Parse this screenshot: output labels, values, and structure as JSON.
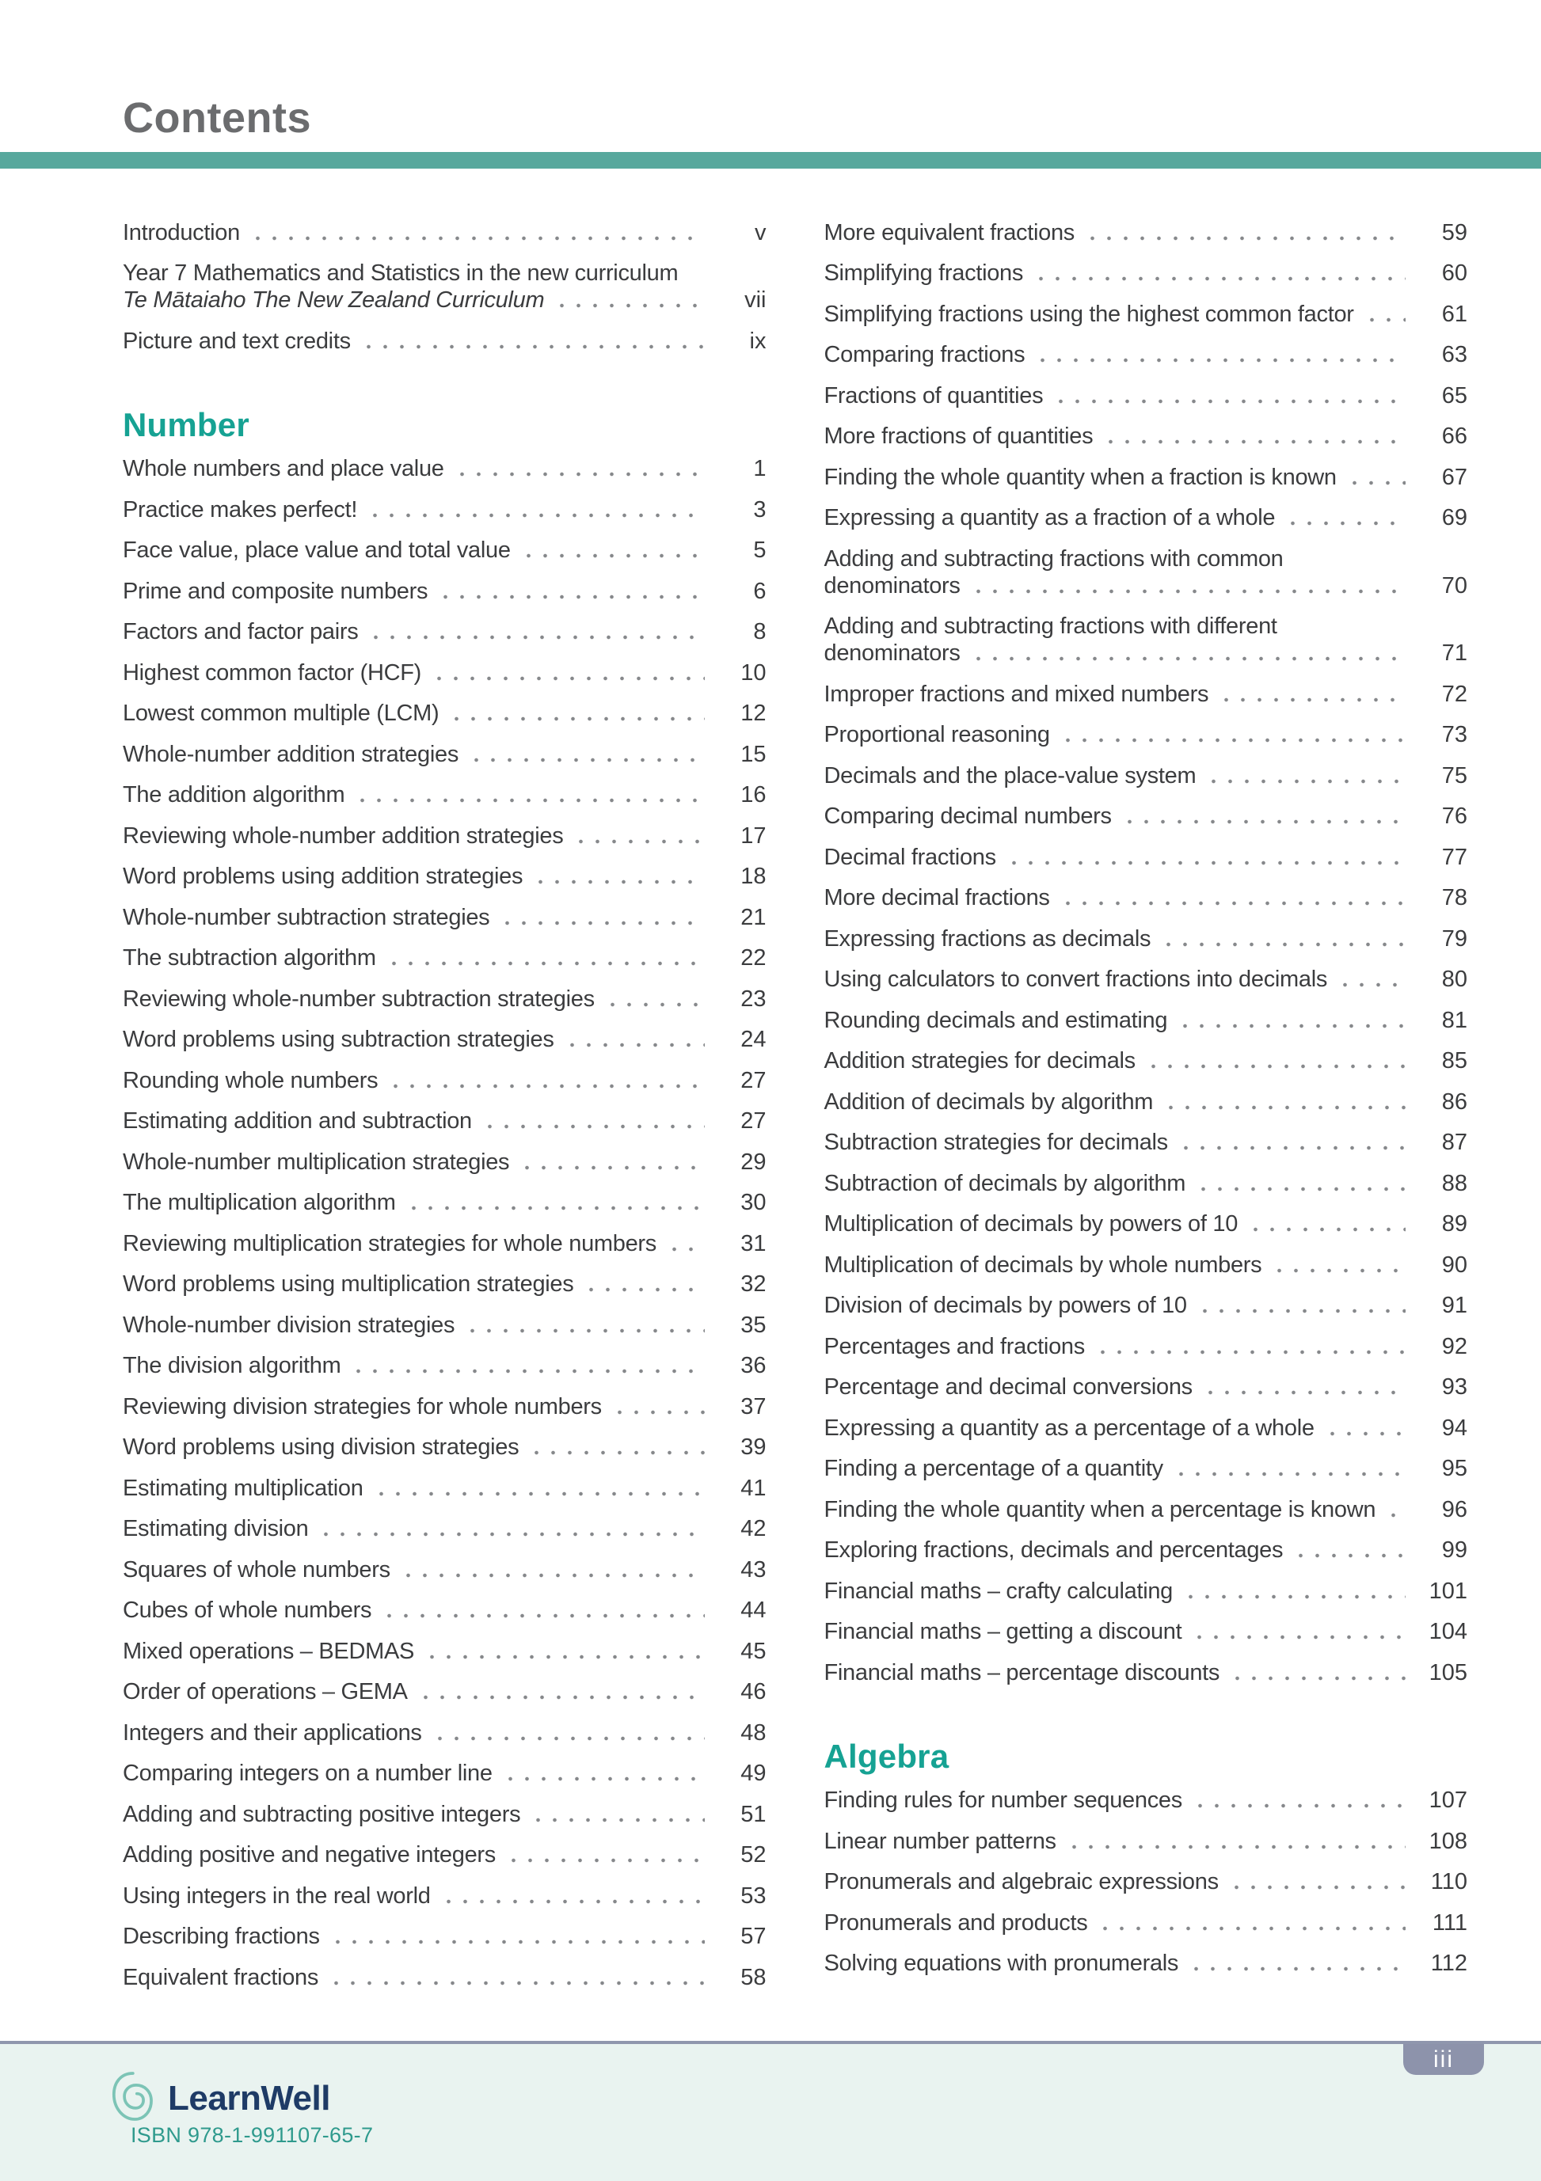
{
  "page": {
    "title": "Contents",
    "page_badge": "iii"
  },
  "footer": {
    "brand_name": "LearnWell",
    "isbn": "ISBN 978-1-991107-65-7"
  },
  "accent_colors": {
    "title_bar_teal": "#58a89d",
    "heading_teal": "#16a293",
    "footer_background": "#e9f3f0",
    "badge_gray_blue": "#8d93ab",
    "brand_navy": "#1e3b66",
    "isbn_teal": "#2f9a8d"
  },
  "toc": {
    "columns": [
      {
        "blocks": [
          {
            "type": "entries",
            "items": [
              {
                "label": "Introduction",
                "page": "v"
              },
              {
                "label": "Year 7 Mathematics and Statistics in the new curriculum",
                "label2": "Te Mātaiaho The New Zealand Curriculum",
                "label2_italic": true,
                "page": "vii"
              },
              {
                "label": "Picture and text credits",
                "page": "ix"
              }
            ]
          },
          {
            "type": "heading",
            "text": "Number"
          },
          {
            "type": "entries",
            "items": [
              {
                "label": "Whole numbers and place value",
                "page": "1"
              },
              {
                "label": "Practice makes perfect!",
                "page": "3"
              },
              {
                "label": "Face value, place value and total value",
                "page": "5"
              },
              {
                "label": "Prime and composite numbers",
                "page": "6"
              },
              {
                "label": "Factors and factor pairs",
                "page": "8"
              },
              {
                "label": "Highest common factor (HCF)",
                "page": "10"
              },
              {
                "label": "Lowest common multiple (LCM)",
                "page": "12"
              },
              {
                "label": "Whole-number addition strategies",
                "page": "15"
              },
              {
                "label": "The addition algorithm",
                "page": "16"
              },
              {
                "label": "Reviewing whole-number addition strategies",
                "page": "17"
              },
              {
                "label": "Word problems using addition strategies",
                "page": "18"
              },
              {
                "label": "Whole-number subtraction strategies",
                "page": "21"
              },
              {
                "label": "The subtraction algorithm",
                "page": "22"
              },
              {
                "label": "Reviewing whole-number subtraction strategies",
                "page": "23"
              },
              {
                "label": "Word problems using subtraction strategies",
                "page": "24"
              },
              {
                "label": "Rounding whole numbers",
                "page": "27"
              },
              {
                "label": "Estimating addition and subtraction",
                "page": "27"
              },
              {
                "label": "Whole-number multiplication strategies",
                "page": "29"
              },
              {
                "label": "The multiplication algorithm",
                "page": "30"
              },
              {
                "label": "Reviewing multiplication strategies for whole numbers",
                "page": "31"
              },
              {
                "label": "Word problems using multiplication strategies",
                "page": "32"
              },
              {
                "label": "Whole-number division strategies",
                "page": "35"
              },
              {
                "label": "The division algorithm",
                "page": "36"
              },
              {
                "label": "Reviewing division strategies for whole numbers",
                "page": "37"
              },
              {
                "label": "Word problems using division strategies",
                "page": "39"
              },
              {
                "label": "Estimating multiplication",
                "page": "41"
              },
              {
                "label": "Estimating division",
                "page": "42"
              },
              {
                "label": "Squares of whole numbers",
                "page": "43"
              },
              {
                "label": "Cubes of whole numbers",
                "page": "44"
              },
              {
                "label": "Mixed operations – BEDMAS",
                "page": "45"
              },
              {
                "label": "Order of operations – GEMA",
                "page": "46"
              },
              {
                "label": "Integers and their applications",
                "page": "48"
              },
              {
                "label": "Comparing integers on a number line",
                "page": "49"
              },
              {
                "label": "Adding and subtracting positive integers",
                "page": "51"
              },
              {
                "label": "Adding positive and negative integers",
                "page": "52"
              },
              {
                "label": "Using integers in the real world",
                "page": "53"
              },
              {
                "label": "Describing fractions",
                "page": "57"
              },
              {
                "label": "Equivalent fractions",
                "page": "58"
              }
            ]
          }
        ]
      },
      {
        "blocks": [
          {
            "type": "entries",
            "items": [
              {
                "label": "More equivalent fractions",
                "page": "59"
              },
              {
                "label": "Simplifying fractions",
                "page": "60"
              },
              {
                "label": "Simplifying fractions using the highest common factor",
                "page": "61"
              },
              {
                "label": "Comparing fractions",
                "page": "63"
              },
              {
                "label": "Fractions of quantities",
                "page": "65"
              },
              {
                "label": "More fractions of quantities",
                "page": "66"
              },
              {
                "label": "Finding the whole quantity when a fraction is known",
                "page": "67"
              },
              {
                "label": "Expressing a quantity as a fraction of a whole",
                "page": "69"
              },
              {
                "label": "Adding and subtracting fractions with common",
                "label2": "denominators",
                "label2_italic": false,
                "page": "70"
              },
              {
                "label": "Adding and subtracting fractions with different",
                "label2": "denominators",
                "label2_italic": false,
                "page": "71"
              },
              {
                "label": "Improper fractions and mixed numbers",
                "page": "72"
              },
              {
                "label": "Proportional reasoning",
                "page": "73"
              },
              {
                "label": "Decimals and the place-value system",
                "page": "75"
              },
              {
                "label": "Comparing decimal numbers",
                "page": "76"
              },
              {
                "label": "Decimal fractions",
                "page": "77"
              },
              {
                "label": "More decimal fractions",
                "page": "78"
              },
              {
                "label": "Expressing fractions as decimals",
                "page": "79"
              },
              {
                "label": "Using calculators to convert fractions into decimals",
                "page": "80"
              },
              {
                "label": "Rounding decimals and estimating",
                "page": "81"
              },
              {
                "label": "Addition strategies for decimals",
                "page": "85"
              },
              {
                "label": "Addition of decimals by algorithm",
                "page": "86"
              },
              {
                "label": "Subtraction strategies for decimals",
                "page": "87"
              },
              {
                "label": "Subtraction of decimals by algorithm",
                "page": "88"
              },
              {
                "label": "Multiplication of decimals by powers of 10",
                "page": "89"
              },
              {
                "label": "Multiplication of decimals by whole numbers",
                "page": "90"
              },
              {
                "label": "Division of decimals by powers of 10",
                "page": "91"
              },
              {
                "label": "Percentages and fractions",
                "page": "92"
              },
              {
                "label": "Percentage and decimal conversions",
                "page": "93"
              },
              {
                "label": "Expressing a quantity as a percentage of a whole",
                "page": "94"
              },
              {
                "label": "Finding a percentage of a quantity",
                "page": "95"
              },
              {
                "label": "Finding the whole quantity when a percentage is known",
                "page": "96"
              },
              {
                "label": "Exploring fractions, decimals and percentages",
                "page": "99"
              },
              {
                "label": "Financial maths – crafty calculating",
                "page": "101"
              },
              {
                "label": "Financial maths – getting a discount",
                "page": "104"
              },
              {
                "label": "Financial maths – percentage discounts",
                "page": "105"
              }
            ]
          },
          {
            "type": "heading",
            "text": "Algebra"
          },
          {
            "type": "entries",
            "items": [
              {
                "label": "Finding rules for number sequences",
                "page": "107"
              },
              {
                "label": "Linear number patterns",
                "page": "108"
              },
              {
                "label": "Pronumerals and algebraic expressions",
                "page": "110"
              },
              {
                "label": "Pronumerals and products",
                "page": "111"
              },
              {
                "label": "Solving equations with pronumerals",
                "page": "112"
              }
            ]
          }
        ]
      }
    ]
  }
}
